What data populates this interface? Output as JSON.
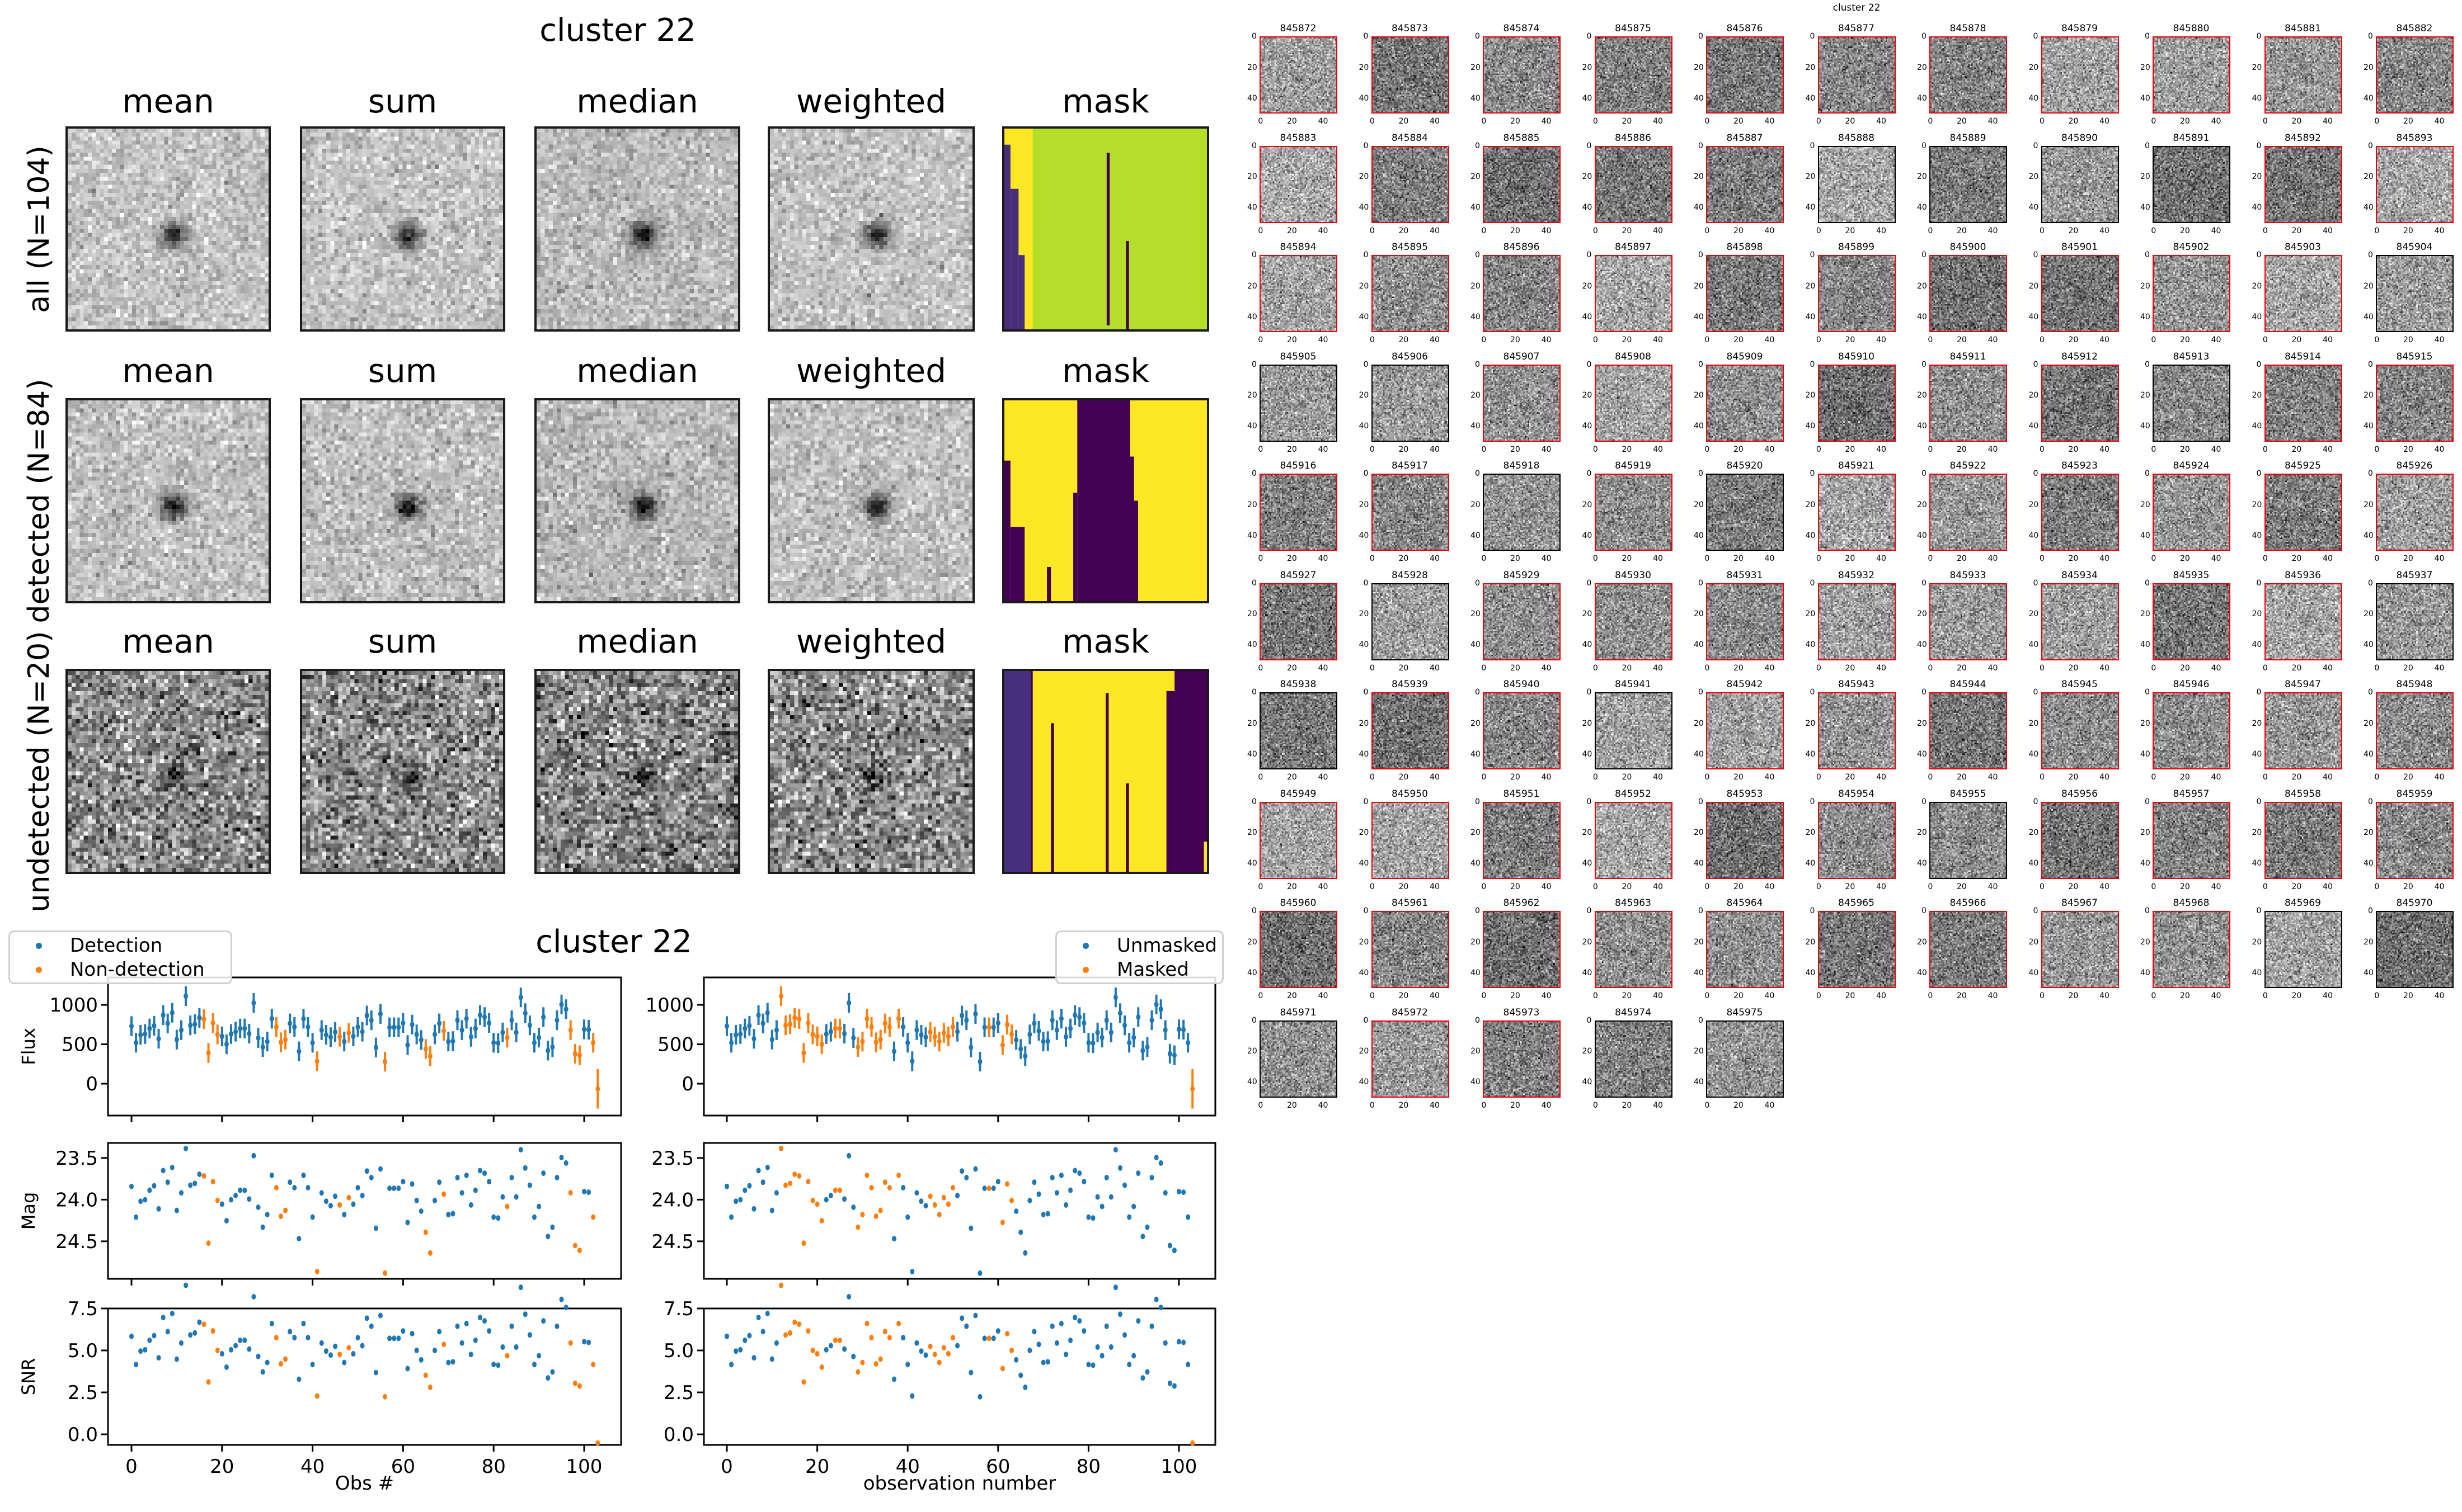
{
  "stack_figure": {
    "title": "cluster 22",
    "columns": [
      "mean",
      "sum",
      "median",
      "weighted",
      "mask"
    ],
    "rows": [
      "all (N=104)",
      "detected (N=84)",
      "undetected (N=20)"
    ]
  },
  "colors": {
    "blue": "#1f77b4",
    "orange": "#ff7f0e",
    "detected_border": "#e8000b",
    "undetected_border": "#000000"
  },
  "chart_data": {
    "type": "scatter",
    "title": "cluster 22",
    "legend_left": {
      "entries": [
        "Detection",
        "Non-detection"
      ],
      "placement": "top-left"
    },
    "legend_right": {
      "entries": [
        "Unmasked",
        "Masked"
      ],
      "placement": "top-right"
    },
    "xlabel_left": "Obs #",
    "xlabel_right": "observation number",
    "xlim": [
      -4,
      108
    ],
    "xticks": [
      0,
      20,
      40,
      60,
      80,
      100
    ],
    "panels": [
      {
        "key": "flux",
        "ylabel": "Flux",
        "ylim": [
          -404,
          1348
        ],
        "yticks": [
          "0",
          "500",
          "1000"
        ],
        "ytick_values": [
          0,
          500,
          1000
        ]
      },
      {
        "key": "mag",
        "ylabel": "Mag",
        "ylim": [
          24.95,
          23.32
        ],
        "yticks": [
          "23.5",
          "24.0",
          "24.5"
        ],
        "ytick_values": [
          23.5,
          24.0,
          24.5
        ]
      },
      {
        "key": "snr",
        "ylabel": "SNR",
        "ylim": [
          -0.63,
          7.5
        ],
        "yticks": [
          "0.0",
          "2.5",
          "5.0",
          "7.5"
        ],
        "ytick_values": [
          0,
          2.5,
          5,
          7.5
        ]
      }
    ],
    "flux": [
      730,
      520,
      620,
      630,
      700,
      735,
      570,
      870,
      765,
      900,
      560,
      680,
      1110,
      740,
      755,
      835,
      820,
      390,
      770,
      625,
      600,
      500,
      630,
      660,
      700,
      700,
      635,
      1025,
      580,
      465,
      535,
      825,
      720,
      525,
      560,
      765,
      720,
      410,
      825,
      720,
      520,
      285,
      680,
      620,
      590,
      655,
      595,
      535,
      645,
      600,
      720,
      660,
      865,
      805,
      460,
      885,
      280,
      715,
      715,
      715,
      770,
      490,
      750,
      625,
      555,
      440,
      350,
      625,
      765,
      670,
      535,
      540,
      805,
      680,
      825,
      595,
      700,
      870,
      845,
      770,
      520,
      515,
      650,
      585,
      805,
      650,
      1095,
      895,
      740,
      520,
      585,
      845,
      420,
      465,
      805,
      1005,
      945,
      680,
      380,
      360,
      690,
      685,
      520,
      -65
    ],
    "flux_err_typical": 125,
    "mag_zeropoint": 31.0,
    "undetected_indices": [
      16,
      17,
      18,
      19,
      32,
      33,
      34,
      41,
      46,
      48,
      56,
      65,
      66,
      69,
      83,
      97,
      98,
      99,
      102,
      103
    ],
    "masked_indices": [
      12,
      13,
      14,
      15,
      16,
      17,
      18,
      19,
      20,
      21,
      24,
      25,
      29,
      30,
      31,
      32,
      33,
      34,
      35,
      36,
      38,
      45,
      46,
      47,
      48,
      49,
      50,
      58,
      61,
      62,
      63,
      103
    ]
  },
  "thumbnails": {
    "title": "cluster 22",
    "ticks": [
      "0",
      "20",
      "40"
    ],
    "ids": [
      "845872",
      "845873",
      "845874",
      "845875",
      "845876",
      "845877",
      "845878",
      "845879",
      "845880",
      "845881",
      "845882",
      "845883",
      "845884",
      "845885",
      "845886",
      "845887",
      "845888",
      "845889",
      "845890",
      "845891",
      "845892",
      "845893",
      "845894",
      "845895",
      "845896",
      "845897",
      "845898",
      "845899",
      "845900",
      "845901",
      "845902",
      "845903",
      "845904",
      "845905",
      "845906",
      "845907",
      "845908",
      "845909",
      "845910",
      "845911",
      "845912",
      "845913",
      "845914",
      "845915",
      "845916",
      "845917",
      "845918",
      "845919",
      "845920",
      "845921",
      "845922",
      "845923",
      "845924",
      "845925",
      "845926",
      "845927",
      "845928",
      "845929",
      "845930",
      "845931",
      "845932",
      "845933",
      "845934",
      "845935",
      "845936",
      "845937",
      "845938",
      "845939",
      "845940",
      "845941",
      "845942",
      "845943",
      "845944",
      "845945",
      "845946",
      "845947",
      "845948",
      "845949",
      "845950",
      "845951",
      "845952",
      "845953",
      "845954",
      "845955",
      "845956",
      "845957",
      "845958",
      "845959",
      "845960",
      "845961",
      "845962",
      "845963",
      "845964",
      "845965",
      "845966",
      "845967",
      "845968",
      "845969",
      "845970",
      "845971",
      "845972",
      "845973",
      "845974",
      "845975"
    ],
    "undetected_ids": [
      "845888",
      "845889",
      "845890",
      "845891",
      "845904",
      "845905",
      "845906",
      "845913",
      "845918",
      "845920",
      "845928",
      "845937",
      "845938",
      "845941",
      "845955",
      "845969",
      "845970",
      "845971",
      "845974",
      "845975"
    ]
  }
}
